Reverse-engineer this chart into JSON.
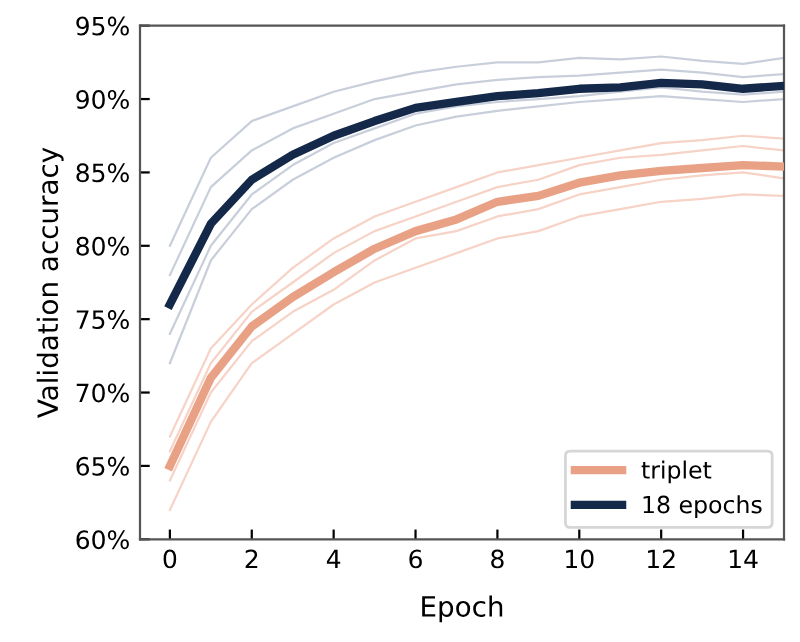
{
  "chart_data": {
    "type": "line",
    "xlabel": "Epoch",
    "ylabel": "Validation accuracy",
    "x": [
      0,
      1,
      2,
      3,
      4,
      5,
      6,
      7,
      8,
      9,
      10,
      11,
      12,
      13,
      14,
      15
    ],
    "series": [
      {
        "color": "#f6d3c6",
        "values": [
          62,
          68,
          72,
          74,
          76,
          77.5,
          78.5,
          79.5,
          80.5,
          81,
          82,
          82.5,
          83,
          83.2,
          83.5,
          83.4
        ]
      },
      {
        "color": "#f6d3c6",
        "values": [
          67,
          73,
          76,
          78.5,
          80.5,
          82,
          83,
          84,
          85,
          85.5,
          86,
          86.5,
          87,
          87.2,
          87.5,
          87.3
        ]
      },
      {
        "color": "#f6d3c6",
        "values": [
          64,
          70,
          73.5,
          75.5,
          77,
          79,
          80.5,
          81,
          82,
          82.5,
          83.5,
          84,
          84.5,
          84.8,
          85,
          84.6
        ]
      },
      {
        "color": "#f6d3c6",
        "values": [
          66,
          72,
          75.5,
          77.5,
          79.5,
          81,
          82,
          83,
          84,
          84.5,
          85.5,
          86,
          86.2,
          86.5,
          86.8,
          86.5
        ]
      },
      {
        "color": "#c8cfdb",
        "values": [
          74,
          80,
          83.5,
          85.5,
          87,
          88,
          89,
          89.5,
          89.8,
          90,
          90.2,
          90.5,
          90.8,
          90.5,
          90.3,
          90.5
        ]
      },
      {
        "color": "#c8cfdb",
        "values": [
          78,
          84,
          86.5,
          88,
          89,
          90,
          90.5,
          91,
          91.3,
          91.5,
          91.6,
          91.8,
          92,
          91.8,
          91.5,
          91.7
        ]
      },
      {
        "color": "#c8cfdb",
        "values": [
          72,
          79,
          82.5,
          84.5,
          86,
          87.2,
          88.2,
          88.8,
          89.2,
          89.5,
          89.8,
          90,
          90.2,
          90,
          89.8,
          90
        ]
      },
      {
        "color": "#c8cfdb",
        "values": [
          80,
          86,
          88.5,
          89.5,
          90.5,
          91.2,
          91.8,
          92.2,
          92.5,
          92.5,
          92.8,
          92.7,
          92.9,
          92.6,
          92.4,
          92.8
        ]
      },
      {
        "name": "triplet",
        "color": "#e9a185",
        "values": [
          65,
          71,
          74.5,
          76.5,
          78.2,
          79.8,
          81,
          81.8,
          83,
          83.4,
          84.3,
          84.8,
          85.1,
          85.3,
          85.5,
          85.4
        ]
      },
      {
        "name": "18 epochs",
        "color": "#14294a",
        "values": [
          76,
          81.5,
          84.5,
          86.2,
          87.5,
          88.5,
          89.4,
          89.8,
          90.2,
          90.4,
          90.7,
          90.8,
          91.1,
          91,
          90.7,
          90.9
        ]
      }
    ],
    "xlim": [
      -0.73,
      15
    ],
    "xticks": [
      0,
      2,
      4,
      6,
      8,
      10,
      12,
      14
    ],
    "ylim": [
      60,
      95
    ],
    "yticks": [
      {
        "value": 60,
        "label": "60%"
      },
      {
        "value": 65,
        "label": "65%"
      },
      {
        "value": 70,
        "label": "70%"
      },
      {
        "value": 75,
        "label": "75%"
      },
      {
        "value": 80,
        "label": "80%"
      },
      {
        "value": 85,
        "label": "85%"
      },
      {
        "value": 90,
        "label": "90%"
      },
      {
        "value": 95,
        "label": "95%"
      }
    ],
    "grid": false,
    "legend": "bottom right"
  }
}
